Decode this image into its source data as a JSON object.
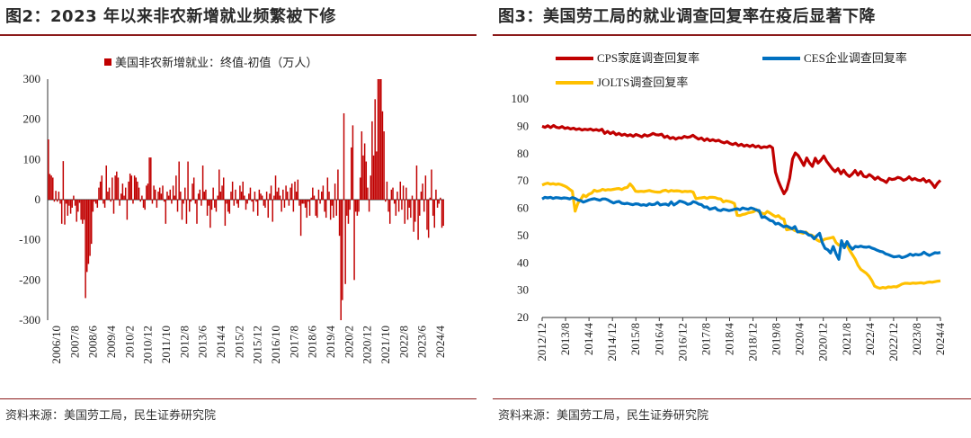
{
  "left": {
    "title": "图2：2023 年以来非农新增就业频繁被下修",
    "source": "资料来源：美国劳工局，民生证券研究院",
    "chart_data": {
      "type": "bar",
      "legend": "美国非农新增就业：终值-初值（万人）",
      "legend_position": "top",
      "ylim": [
        -300,
        300
      ],
      "yticks": [
        -300,
        -200,
        -100,
        0,
        100,
        200,
        300
      ],
      "xticks": [
        "2006/10",
        "2007/8",
        "2008/6",
        "2009/4",
        "2010/2",
        "2010/12",
        "2011/10",
        "2012/8",
        "2013/6",
        "2014/4",
        "2015/2",
        "2015/12",
        "2016/10",
        "2017/8",
        "2018/6",
        "2019/4",
        "2020/2",
        "2020/12",
        "2021/10",
        "2022/8",
        "2023/6",
        "2024/4"
      ],
      "color": "#c00000",
      "values": [
        150,
        64,
        60,
        55,
        -5,
        22,
        -5,
        20,
        -10,
        -60,
        96,
        -62,
        -10,
        -40,
        -15,
        -35,
        -20,
        10,
        -15,
        -55,
        -30,
        -8,
        -50,
        -60,
        -50,
        -245,
        -180,
        -160,
        -140,
        -110,
        -30,
        -5,
        -10,
        -20,
        30,
        45,
        60,
        -10,
        -20,
        85,
        20,
        30,
        -5,
        55,
        -35,
        60,
        70,
        55,
        -15,
        15,
        40,
        10,
        30,
        -50,
        45,
        65,
        60,
        -10,
        60,
        55,
        45,
        30,
        -5,
        10,
        -20,
        -25,
        35,
        40,
        105,
        105,
        -10,
        35,
        25,
        -20,
        20,
        30,
        15,
        35,
        -5,
        -60,
        20,
        10,
        25,
        -10,
        35,
        10,
        60,
        -30,
        95,
        20,
        -50,
        -10,
        30,
        -60,
        95,
        -30,
        -5,
        40,
        55,
        -10,
        -60,
        15,
        25,
        -15,
        85,
        20,
        25,
        -40,
        -15,
        -70,
        -25,
        30,
        -20,
        -30,
        10,
        75,
        20,
        35,
        55,
        -65,
        -10,
        -30,
        -35,
        20,
        45,
        -15,
        25,
        -10,
        -20,
        35,
        20,
        45,
        10,
        -25,
        -10,
        15,
        30,
        -5,
        -30,
        20,
        -5,
        -40,
        25,
        15,
        10,
        -15,
        -20,
        20,
        -45,
        15,
        35,
        -55,
        10,
        60,
        20,
        30,
        10,
        -30,
        25,
        -20,
        35,
        20,
        -15,
        30,
        40,
        -30,
        45,
        20,
        50,
        -15,
        -90,
        -10,
        -10,
        -20,
        -45,
        -5,
        -40,
        5,
        30,
        10,
        -40,
        -45,
        25,
        -10,
        20,
        35,
        -30,
        -45,
        55,
        20,
        -50,
        -15,
        -45,
        40,
        -40,
        75,
        -90,
        -300,
        -250,
        215,
        -210,
        -40,
        -60,
        -25,
        130,
        185,
        -200,
        -30,
        -40,
        -30,
        55,
        170,
        110,
        140,
        95,
        30,
        -30,
        60,
        195,
        110,
        250,
        120,
        300,
        305,
        300,
        220,
        170,
        -5,
        45,
        -30,
        -60,
        25,
        30,
        -10,
        -40,
        20,
        -30,
        45,
        -25,
        35,
        -60,
        30,
        -50,
        -20,
        -45,
        10,
        -80,
        -55,
        85,
        -100,
        -40,
        20,
        40,
        -30,
        60,
        -75,
        -95,
        5,
        75,
        -40,
        -70,
        25,
        -20,
        -10,
        5,
        -70,
        -65
      ]
    }
  },
  "right": {
    "title": "图3：美国劳工局的就业调查回复率在疫后显著下降",
    "source": "资料来源：美国劳工局，民生证券研究院",
    "chart_data": {
      "type": "line",
      "ylim": [
        20,
        100
      ],
      "yticks": [
        20,
        30,
        40,
        50,
        60,
        70,
        80,
        90,
        100
      ],
      "xticks": [
        "2012/12",
        "2013/8",
        "2014/4",
        "2014/12",
        "2015/8",
        "2016/4",
        "2016/12",
        "2017/8",
        "2018/4",
        "2018/12",
        "2019/8",
        "2020/4",
        "2020/12",
        "2021/8",
        "2022/4",
        "2022/12",
        "2023/8",
        "2024/4"
      ],
      "series": [
        {
          "name": "CPS家庭调查回复率",
          "color": "#c00000",
          "legend_row": 0,
          "legend_col": 0,
          "values": [
            90,
            89.6,
            90.2,
            89.5,
            90.3,
            89.6,
            89.4,
            89.9,
            89.2,
            89.5,
            89,
            89.3,
            88.8,
            89.1,
            88.6,
            88.9,
            88.7,
            89,
            88.5,
            88.8,
            88.4,
            88.9,
            87.4,
            88.1,
            87.3,
            87.9,
            86.9,
            87.4,
            86.7,
            87.1,
            86.5,
            86.9,
            86.3,
            87,
            86.6,
            86.1,
            86.9,
            86.4,
            86.8,
            87.4,
            86.9,
            86.8,
            87.1,
            85.9,
            86.4,
            85.5,
            85.9,
            85.3,
            85.8,
            85.6,
            86.3,
            85.9,
            86.1,
            86.7,
            85.9,
            85.3,
            85.7,
            84.8,
            85.4,
            84.7,
            85.1,
            84.6,
            84.9,
            84.3,
            83.9,
            84.4,
            83.7,
            83.3,
            83.8,
            82.9,
            83.4,
            82.7,
            83.1,
            82.6,
            83.1,
            82.4,
            82.8,
            82.1,
            82.5,
            82.3,
            82.8,
            82.1,
            73.2,
            70,
            67.5,
            65.3,
            66.9,
            71,
            78,
            80.2,
            79.3,
            77.5,
            75.6,
            78.4,
            76.6,
            75.3,
            78.3,
            76.5,
            77.6,
            79.1,
            77.2,
            75.8,
            74.4,
            73.4,
            74.5,
            72.6,
            73.9,
            72.4,
            71.6,
            72.5,
            73.8,
            72.1,
            73.4,
            71.7,
            71.4,
            72.3,
            71.6,
            70.6,
            71.4,
            70.5,
            70.1,
            69.4,
            70.9,
            70.5,
            70.7,
            71.3,
            71,
            70.2,
            70.6,
            71.5,
            70.4,
            70.9,
            70.3,
            70.1,
            70.8,
            69.6,
            70.2,
            69.1,
            67.6,
            69.2,
            70.2
          ]
        },
        {
          "name": "CES企业调查回复率",
          "color": "#0070c0",
          "legend_row": 0,
          "legend_col": 1,
          "values": [
            63.4,
            64,
            63.8,
            64,
            63.6,
            63.9,
            63.8,
            63.6,
            63.8,
            63.7,
            63.4,
            63.9,
            63.6,
            63,
            62.8,
            62.2,
            62.6,
            63,
            63.3,
            63.5,
            63.2,
            62.9,
            63.4,
            63.4,
            63,
            62.4,
            61.9,
            62.3,
            62.5,
            61.8,
            61.6,
            61.8,
            61.5,
            61.3,
            61.6,
            61.5,
            61.1,
            61.3,
            61,
            61.6,
            61.3,
            61.4,
            62.1,
            61.2,
            61.4,
            61.5,
            61.1,
            62.3,
            61.2,
            61.8,
            62.6,
            62.4,
            62,
            61.4,
            61.6,
            62.4,
            62.1,
            61.5,
            61.3,
            60.4,
            60.5,
            59.6,
            59.9,
            60.2,
            59.3,
            59.1,
            59.6,
            59.4,
            59.1,
            59.3,
            59.6,
            59.8,
            59.4,
            60.1,
            59.8,
            59.6,
            60.1,
            59.8,
            59.3,
            59.1,
            56.6,
            56.9,
            56.2,
            55.5,
            55.3,
            54.2,
            54.5,
            53.8,
            53.2,
            53.5,
            53,
            52.5,
            53.3,
            51.3,
            51.5,
            51.3,
            51,
            50.2,
            50,
            48.8,
            49.9,
            50.8,
            47.4,
            45.3,
            44.8,
            43.6,
            46,
            43.3,
            41.3,
            48.1,
            45.5,
            47.8,
            46,
            45,
            46,
            45.8,
            46.1,
            45.8,
            45.7,
            45.9,
            45.4,
            45.1,
            44.6,
            44.2,
            44,
            43.3,
            43,
            42.6,
            42.2,
            42.3,
            42.5,
            41.9,
            42.2,
            42.6,
            43.2,
            42.7,
            43.1,
            42.9,
            43.1,
            43.9,
            43.2,
            42.7,
            43.2,
            43.7,
            43.6,
            43.8
          ]
        },
        {
          "name": "JOLTS调查回复率",
          "color": "#ffc000",
          "legend_row": 1,
          "legend_col": 0,
          "values": [
            68.5,
            68.9,
            69.2,
            68.8,
            69,
            68.7,
            68.9,
            68.6,
            68.2,
            67.7,
            66.9,
            66.2,
            58.9,
            61.8,
            63.1,
            64.8,
            64.2,
            65.1,
            65.5,
            66.6,
            66.2,
            66.4,
            66.9,
            66.6,
            66.8,
            66.7,
            66.9,
            67.1,
            67.2,
            66.8,
            67.4,
            67.6,
            68.9,
            67.8,
            66.2,
            66.1,
            66.2,
            66.1,
            66.3,
            66.5,
            66.2,
            66,
            65.9,
            65.9,
            66.4,
            66.6,
            66.1,
            66.5,
            66.3,
            66.4,
            66.3,
            66,
            66.2,
            66.1,
            66.2,
            65.9,
            63.5,
            63.7,
            63.8,
            64,
            63.6,
            64,
            64,
            63.9,
            63.5,
            63.4,
            62.3,
            62.7,
            62.5,
            62.2,
            61.7,
            57.4,
            57.3,
            57.7,
            57.9,
            58.3,
            58.5,
            58.7,
            59.5,
            58.6,
            58.2,
            57.9,
            58.8,
            58.2,
            57.5,
            56.9,
            57.3,
            56.3,
            56,
            52.1,
            52.3,
            52.5,
            51.8,
            51.5,
            51.1,
            50.8,
            51.3,
            50.4,
            50.2,
            49.6,
            48.4,
            47.9,
            48.1,
            48.7,
            48.9,
            49.1,
            49.4,
            47.4,
            46.5,
            46.7,
            46.8,
            46.4,
            44.5,
            42.9,
            41.3,
            39.1,
            37.6,
            36.9,
            36.2,
            35.1,
            33.6,
            31.5,
            31,
            30.7,
            31,
            30.8,
            31.2,
            31.1,
            31.3,
            31.2,
            31.7,
            32.2,
            32.5,
            32.5,
            32.4,
            32.6,
            32.5,
            32.6,
            32.7,
            32.5,
            32.8,
            33,
            32.9,
            33.1,
            33.3,
            33.4
          ]
        }
      ]
    }
  }
}
